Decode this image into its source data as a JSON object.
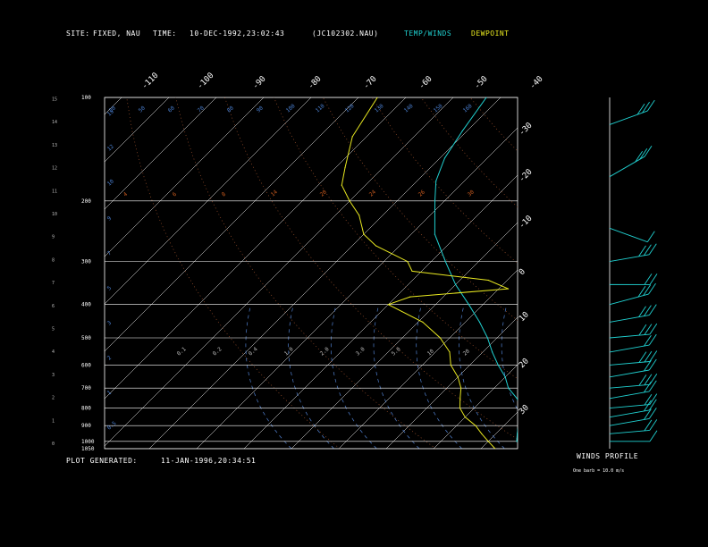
{
  "header": {
    "site_label": "SITE:",
    "site_value": "FIXED, NAU",
    "time_label": "TIME:",
    "time_value": "10-DEC-1992,23:02:43",
    "file_id": "(JC102302.NAU)",
    "legend_temp_winds": "TEMP/WINDS",
    "legend_dewpoint": "DEWPOINT"
  },
  "footer": {
    "plot_generated_label": "PLOT GENERATED:",
    "plot_generated_value": "11-JAN-1996,20:34:51",
    "winds_profile_label": "WINDS PROFILE",
    "barb_scale_note": "One barb = 10.0 m/s"
  },
  "colors": {
    "temp_winds": "#20d0d0",
    "dewpoint": "#e8e820",
    "isobar": "#ffffff",
    "isotherm": "#ffffff",
    "dry_adiabat": "#a0522d",
    "mixing_ratio": "#5080d0",
    "saturated_adiabat": "#5080d0"
  },
  "chart_data": {
    "type": "skew-t",
    "xlabel": "",
    "ylabel": "",
    "pressure_levels": [
      "100",
      "200",
      "300",
      "400",
      "500",
      "600",
      "700",
      "800",
      "900",
      "1000",
      "1050"
    ],
    "top_isotherm_labels": [
      "-110",
      "-100",
      "-90",
      "-80",
      "-70",
      "-60",
      "-50",
      "-40"
    ],
    "right_isotherm_labels": [
      "-30",
      "-20",
      "-10",
      "0",
      "10",
      "20",
      "30"
    ],
    "height_km_labels": [
      "0",
      "1",
      "2",
      "3",
      "4",
      "5",
      "6",
      "7",
      "8",
      "9",
      "10",
      "11",
      "12",
      "13",
      "14",
      "15"
    ],
    "theta_labels_top": [
      "30",
      "50",
      "60",
      "70",
      "80",
      "90",
      "100",
      "110",
      "120",
      "130",
      "140",
      "150",
      "160"
    ],
    "theta_labels_mid": [
      "4",
      "6",
      "8",
      "14",
      "20",
      "24",
      "26",
      "30"
    ],
    "mixing_ratio_labels": [
      "0.1",
      "0.2",
      "0.4",
      "1.0",
      "2.0",
      "3.0",
      "5.0",
      "10",
      "20"
    ],
    "left_blue_labels": [
      "15",
      "12",
      "10",
      "9",
      "7",
      "5",
      "3",
      "2",
      "1",
      "0.5"
    ],
    "temperature_profile": [
      {
        "p": 1050,
        "t": 12
      },
      {
        "p": 1000,
        "t": 6
      },
      {
        "p": 950,
        "t": 4.5
      },
      {
        "p": 900,
        "t": 3
      },
      {
        "p": 850,
        "t": 2
      },
      {
        "p": 800,
        "t": 0
      },
      {
        "p": 750,
        "t": -3
      },
      {
        "p": 700,
        "t": -7
      },
      {
        "p": 650,
        "t": -10
      },
      {
        "p": 600,
        "t": -14
      },
      {
        "p": 550,
        "t": -18
      },
      {
        "p": 500,
        "t": -22
      },
      {
        "p": 450,
        "t": -27
      },
      {
        "p": 400,
        "t": -33
      },
      {
        "p": 350,
        "t": -40
      },
      {
        "p": 300,
        "t": -47
      },
      {
        "p": 250,
        "t": -55
      },
      {
        "p": 200,
        "t": -62
      },
      {
        "p": 175,
        "t": -66
      },
      {
        "p": 150,
        "t": -69
      },
      {
        "p": 125,
        "t": -71
      },
      {
        "p": 100,
        "t": -73
      }
    ],
    "dewpoint_profile": [
      {
        "p": 1050,
        "t": 3
      },
      {
        "p": 1000,
        "t": 0
      },
      {
        "p": 950,
        "t": -3
      },
      {
        "p": 900,
        "t": -6
      },
      {
        "p": 850,
        "t": -10
      },
      {
        "p": 800,
        "t": -13
      },
      {
        "p": 750,
        "t": -15
      },
      {
        "p": 700,
        "t": -17
      },
      {
        "p": 650,
        "t": -20
      },
      {
        "p": 600,
        "t": -24
      },
      {
        "p": 550,
        "t": -27
      },
      {
        "p": 500,
        "t": -32
      },
      {
        "p": 450,
        "t": -39
      },
      {
        "p": 400,
        "t": -50
      },
      {
        "p": 380,
        "t": -47
      },
      {
        "p": 360,
        "t": -28
      },
      {
        "p": 340,
        "t": -34
      },
      {
        "p": 320,
        "t": -52
      },
      {
        "p": 300,
        "t": -55
      },
      {
        "p": 270,
        "t": -65
      },
      {
        "p": 250,
        "t": -70
      },
      {
        "p": 220,
        "t": -75
      },
      {
        "p": 200,
        "t": -80
      },
      {
        "p": 180,
        "t": -85
      },
      {
        "p": 160,
        "t": -88
      },
      {
        "p": 130,
        "t": -93
      },
      {
        "p": 100,
        "t": -96
      }
    ],
    "wind_profile": [
      {
        "p": 120,
        "speed": 30,
        "dir": 290
      },
      {
        "p": 170,
        "speed": 25,
        "dir": 300
      },
      {
        "p": 240,
        "speed": 10,
        "dir": 250
      },
      {
        "p": 300,
        "speed": 25,
        "dir": 280
      },
      {
        "p": 350,
        "speed": 20,
        "dir": 270
      },
      {
        "p": 400,
        "speed": 25,
        "dir": 285
      },
      {
        "p": 450,
        "speed": 25,
        "dir": 280
      },
      {
        "p": 500,
        "speed": 25,
        "dir": 275
      },
      {
        "p": 550,
        "speed": 20,
        "dir": 280
      },
      {
        "p": 600,
        "speed": 25,
        "dir": 275
      },
      {
        "p": 650,
        "speed": 20,
        "dir": 280
      },
      {
        "p": 700,
        "speed": 25,
        "dir": 275
      },
      {
        "p": 750,
        "speed": 20,
        "dir": 280
      },
      {
        "p": 800,
        "speed": 20,
        "dir": 275
      },
      {
        "p": 850,
        "speed": 20,
        "dir": 280
      },
      {
        "p": 900,
        "speed": 15,
        "dir": 280
      },
      {
        "p": 950,
        "speed": 15,
        "dir": 275
      },
      {
        "p": 1000,
        "speed": 10,
        "dir": 270
      }
    ]
  }
}
